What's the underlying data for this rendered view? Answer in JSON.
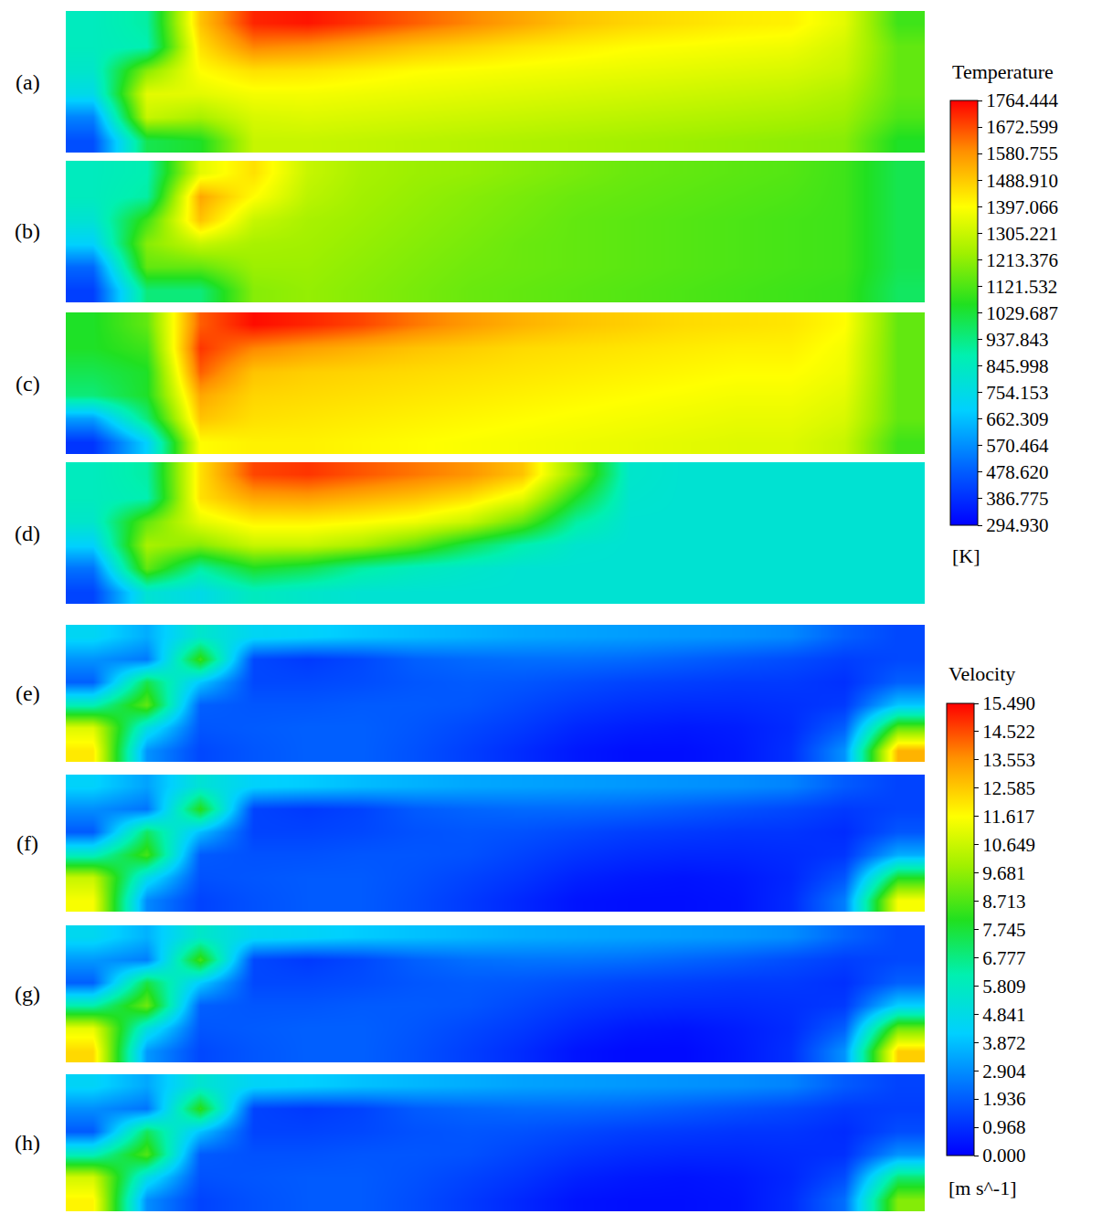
{
  "chart_data": [
    {
      "type": "heatmap",
      "tick_labels": false,
      "colorbar": {
        "title": "Temperature",
        "unit": "[K]",
        "range": [
          294.93,
          1764.444
        ],
        "ticks": [
          1764.444,
          1672.599,
          1580.755,
          {
            "value": 1488.91,
            "label": "1488.910"
          },
          1397.066,
          1305.221,
          1213.376,
          1121.532,
          1029.687,
          937.843,
          845.998,
          754.153,
          662.309,
          570.464,
          {
            "value": 478.62,
            "label": "478.620"
          },
          386.775,
          {
            "value": 294.93,
            "label": "294.930"
          }
        ]
      },
      "panels": [
        {
          "label": "(a)",
          "cells": [
            [
              850,
              900,
              1500,
              1720,
              1740,
              1700,
              1650,
              1600,
              1550,
              1500,
              1470,
              1450,
              1430,
              1420,
              1350,
              1100
            ],
            [
              850,
              880,
              1450,
              1600,
              1580,
              1540,
              1500,
              1470,
              1440,
              1420,
              1400,
              1390,
              1380,
              1370,
              1320,
              1150
            ],
            [
              820,
              1200,
              1400,
              1450,
              1440,
              1420,
              1400,
              1390,
              1380,
              1370,
              1360,
              1350,
              1340,
              1330,
              1300,
              1150
            ],
            [
              750,
              1350,
              1350,
              1380,
              1380,
              1370,
              1360,
              1350,
              1340,
              1330,
              1320,
              1310,
              1300,
              1290,
              1260,
              1150
            ],
            [
              550,
              1300,
              1250,
              1330,
              1340,
              1330,
              1320,
              1310,
              1300,
              1290,
              1280,
              1270,
              1260,
              1250,
              1230,
              1120
            ],
            [
              450,
              1000,
              1050,
              1300,
              1300,
              1290,
              1280,
              1270,
              1260,
              1250,
              1240,
              1230,
              1220,
              1210,
              1200,
              1050
            ]
          ]
        },
        {
          "label": "(b)",
          "cells": [
            [
              850,
              880,
              1350,
              1450,
              1300,
              1250,
              1230,
              1220,
              1200,
              1180,
              1160,
              1150,
              1140,
              1130,
              1100,
              1000
            ],
            [
              850,
              900,
              1550,
              1400,
              1280,
              1240,
              1220,
              1200,
              1180,
              1160,
              1150,
              1140,
              1130,
              1120,
              1100,
              1000
            ],
            [
              800,
              1100,
              1500,
              1300,
              1250,
              1230,
              1210,
              1190,
              1170,
              1150,
              1140,
              1130,
              1120,
              1110,
              1100,
              1000
            ],
            [
              700,
              1200,
              1300,
              1250,
              1240,
              1220,
              1200,
              1180,
              1160,
              1150,
              1140,
              1130,
              1120,
              1110,
              1100,
              1000
            ],
            [
              500,
              1150,
              1150,
              1230,
              1230,
              1210,
              1190,
              1170,
              1160,
              1150,
              1140,
              1130,
              1120,
              1110,
              1100,
              1000
            ],
            [
              420,
              950,
              950,
              1200,
              1220,
              1200,
              1180,
              1160,
              1150,
              1140,
              1130,
              1120,
              1110,
              1100,
              1090,
              980
            ]
          ]
        },
        {
          "label": "(c)",
          "cells": [
            [
              1050,
              1150,
              1650,
              1750,
              1720,
              1680,
              1620,
              1570,
              1530,
              1500,
              1480,
              1460,
              1450,
              1440,
              1400,
              1150
            ],
            [
              1050,
              1100,
              1700,
              1600,
              1560,
              1530,
              1500,
              1480,
              1460,
              1450,
              1440,
              1430,
              1420,
              1420,
              1380,
              1150
            ],
            [
              1000,
              1050,
              1650,
              1500,
              1480,
              1470,
              1460,
              1450,
              1440,
              1430,
              1420,
              1410,
              1400,
              1400,
              1370,
              1150
            ],
            [
              950,
              1050,
              1550,
              1470,
              1460,
              1450,
              1440,
              1430,
              1420,
              1410,
              1400,
              1390,
              1380,
              1380,
              1350,
              1150
            ],
            [
              600,
              950,
              1500,
              1450,
              1440,
              1430,
              1420,
              1410,
              1400,
              1390,
              1380,
              1370,
              1360,
              1360,
              1330,
              1150
            ],
            [
              400,
              700,
              1400,
              1420,
              1420,
              1410,
              1400,
              1390,
              1380,
              1370,
              1360,
              1350,
              1340,
              1340,
              1300,
              1100
            ]
          ]
        },
        {
          "label": "(d)",
          "cells": [
            [
              850,
              900,
              1450,
              1680,
              1700,
              1660,
              1620,
              1580,
              1500,
              1200,
              820,
              800,
              800,
              800,
              800,
              800
            ],
            [
              850,
              880,
              1450,
              1550,
              1560,
              1530,
              1500,
              1450,
              1350,
              1050,
              810,
              800,
              800,
              800,
              800,
              800
            ],
            [
              820,
              1150,
              1350,
              1420,
              1420,
              1400,
              1370,
              1300,
              1150,
              900,
              800,
              800,
              800,
              800,
              800,
              800
            ],
            [
              700,
              1250,
              1200,
              1300,
              1300,
              1250,
              1150,
              1000,
              880,
              810,
              800,
              800,
              800,
              800,
              800,
              800
            ],
            [
              520,
              1150,
              900,
              1050,
              1000,
              900,
              850,
              820,
              800,
              800,
              800,
              800,
              800,
              800,
              800,
              800
            ],
            [
              430,
              800,
              750,
              850,
              820,
              800,
              800,
              800,
              800,
              800,
              800,
              800,
              800,
              800,
              800,
              800
            ]
          ]
        }
      ]
    },
    {
      "type": "heatmap",
      "tick_labels": false,
      "colorbar": {
        "title": "Velocity",
        "unit": "[m s^-1]",
        "range": [
          0,
          15.49
        ],
        "ticks": [
          {
            "value": 15.49,
            "label": "15.490"
          },
          14.522,
          13.553,
          12.585,
          11.617,
          10.649,
          9.681,
          8.713,
          7.745,
          6.777,
          5.809,
          4.841,
          3.872,
          2.904,
          1.936,
          0.968,
          {
            "value": 0,
            "label": "0.000"
          }
        ]
      },
      "panels": [
        {
          "label": "(e)",
          "cells": [
            [
              4.5,
              3.5,
              5.5,
              4.5,
              4.3,
              4.0,
              3.8,
              3.6,
              3.4,
              3.3,
              3.2,
              3.1,
              3.0,
              2.8,
              2.0,
              1.5
            ],
            [
              3.0,
              2.5,
              8.5,
              1.5,
              1.2,
              1.5,
              2.0,
              2.2,
              2.3,
              2.3,
              2.2,
              2.0,
              1.8,
              1.6,
              1.3,
              1.5
            ],
            [
              2.0,
              7.5,
              4.0,
              1.5,
              1.5,
              1.6,
              1.8,
              1.9,
              1.8,
              1.6,
              1.4,
              1.3,
              1.2,
              1.2,
              1.0,
              2.0
            ],
            [
              6.0,
              9.0,
              2.0,
              1.8,
              1.8,
              1.9,
              1.9,
              1.8,
              1.5,
              1.2,
              1.0,
              0.9,
              0.9,
              1.0,
              1.2,
              4.0
            ],
            [
              11.0,
              5.0,
              1.8,
              1.9,
              2.0,
              2.0,
              1.8,
              1.5,
              1.2,
              0.8,
              0.6,
              0.5,
              0.6,
              0.9,
              2.0,
              9.0
            ],
            [
              12.0,
              3.0,
              1.5,
              1.8,
              2.0,
              2.0,
              1.7,
              1.3,
              0.9,
              0.5,
              0.3,
              0.3,
              0.5,
              1.0,
              3.0,
              13.0
            ]
          ]
        },
        {
          "label": "(f)",
          "cells": [
            [
              4.3,
              3.3,
              5.3,
              4.3,
              4.1,
              3.8,
              3.6,
              3.4,
              3.3,
              3.2,
              3.1,
              3.0,
              2.9,
              2.7,
              1.9,
              1.4
            ],
            [
              2.9,
              2.4,
              8.2,
              1.4,
              1.2,
              1.4,
              1.9,
              2.1,
              2.2,
              2.2,
              2.1,
              1.9,
              1.7,
              1.5,
              1.2,
              1.4
            ],
            [
              1.9,
              7.2,
              3.8,
              1.4,
              1.4,
              1.5,
              1.7,
              1.8,
              1.7,
              1.5,
              1.3,
              1.2,
              1.1,
              1.1,
              0.9,
              1.8
            ],
            [
              5.8,
              8.6,
              1.9,
              1.7,
              1.7,
              1.8,
              1.8,
              1.7,
              1.4,
              1.1,
              0.9,
              0.8,
              0.8,
              0.9,
              1.1,
              3.5
            ],
            [
              10.6,
              4.8,
              1.7,
              1.8,
              1.9,
              1.9,
              1.7,
              1.4,
              1.1,
              0.7,
              0.5,
              0.4,
              0.5,
              0.8,
              1.8,
              8.0
            ],
            [
              11.5,
              2.8,
              1.4,
              1.7,
              1.9,
              1.9,
              1.6,
              1.2,
              0.8,
              0.4,
              0.3,
              0.3,
              0.4,
              0.9,
              2.6,
              11.5
            ]
          ]
        },
        {
          "label": "(g)",
          "cells": [
            [
              4.6,
              3.6,
              5.6,
              4.6,
              4.4,
              4.1,
              3.9,
              3.7,
              3.5,
              3.4,
              3.3,
              3.2,
              3.1,
              2.9,
              2.1,
              1.5
            ],
            [
              3.1,
              2.6,
              8.6,
              1.5,
              1.2,
              1.5,
              2.0,
              2.3,
              2.4,
              2.4,
              2.3,
              2.1,
              1.9,
              1.6,
              1.3,
              1.5
            ],
            [
              2.0,
              7.6,
              4.1,
              1.5,
              1.5,
              1.6,
              1.8,
              1.9,
              1.8,
              1.6,
              1.4,
              1.3,
              1.2,
              1.2,
              1.0,
              2.0
            ],
            [
              6.2,
              9.2,
              2.0,
              1.8,
              1.8,
              1.9,
              1.9,
              1.8,
              1.5,
              1.2,
              1.0,
              0.9,
              0.9,
              1.0,
              1.2,
              4.2
            ],
            [
              11.2,
              5.1,
              1.8,
              1.9,
              2.0,
              2.0,
              1.8,
              1.5,
              1.2,
              0.8,
              0.5,
              0.4,
              0.6,
              0.9,
              2.0,
              9.2
            ],
            [
              12.3,
              3.1,
              1.5,
              1.8,
              2.0,
              2.0,
              1.7,
              1.3,
              0.9,
              0.4,
              0.2,
              0.2,
              0.5,
              1.0,
              3.0,
              12.5
            ]
          ]
        },
        {
          "label": "(h)",
          "cells": [
            [
              4.4,
              3.4,
              5.4,
              4.4,
              4.2,
              3.9,
              3.7,
              3.5,
              3.3,
              3.2,
              3.1,
              3.0,
              2.9,
              2.7,
              1.9,
              1.4
            ],
            [
              2.9,
              2.4,
              8.3,
              1.4,
              1.2,
              1.4,
              1.9,
              2.1,
              2.2,
              2.2,
              2.1,
              1.9,
              1.7,
              1.5,
              1.2,
              1.3
            ],
            [
              1.9,
              7.3,
              3.9,
              1.4,
              1.4,
              1.5,
              1.7,
              1.8,
              1.7,
              1.5,
              1.3,
              1.2,
              1.1,
              1.1,
              0.9,
              1.6
            ],
            [
              5.9,
              8.8,
              1.9,
              1.7,
              1.7,
              1.8,
              1.8,
              1.7,
              1.4,
              1.1,
              0.9,
              0.8,
              0.8,
              0.9,
              1.0,
              3.0
            ],
            [
              10.8,
              4.9,
              1.7,
              1.8,
              1.9,
              1.9,
              1.7,
              1.4,
              1.1,
              0.7,
              0.5,
              0.4,
              0.5,
              0.8,
              1.6,
              7.0
            ],
            [
              11.8,
              2.9,
              1.4,
              1.7,
              1.9,
              1.9,
              1.6,
              1.2,
              0.8,
              0.4,
              0.3,
              0.3,
              0.4,
              0.9,
              2.3,
              9.5
            ]
          ]
        }
      ]
    }
  ]
}
